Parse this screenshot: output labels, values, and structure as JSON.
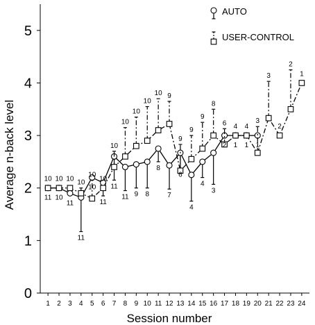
{
  "chart_data": {
    "type": "line",
    "xlabel": "Session number",
    "ylabel": "Average n-back level",
    "xlim": [
      0.3,
      24.7
    ],
    "ylim": [
      0,
      5.5
    ],
    "x_ticks": [
      1,
      2,
      3,
      4,
      5,
      6,
      7,
      8,
      9,
      10,
      11,
      12,
      13,
      14,
      15,
      16,
      17,
      18,
      19,
      20,
      21,
      22,
      23,
      24
    ],
    "y_ticks": [
      0,
      1,
      2,
      3,
      4,
      5
    ],
    "legend_position": "top-right",
    "series": [
      {
        "name": "AUTO",
        "line_style": "solid",
        "marker": "circle",
        "error_direction": "down",
        "points": [
          {
            "x": 1,
            "y": 2.0,
            "err": 0.0,
            "n": "11"
          },
          {
            "x": 2,
            "y": 2.0,
            "err": 0.0,
            "n": "10"
          },
          {
            "x": 3,
            "y": 1.9,
            "err": 0.0,
            "n": "11"
          },
          {
            "x": 4,
            "y": 1.82,
            "err": 0.65,
            "n": "11"
          },
          {
            "x": 5,
            "y": 2.2,
            "err": 0.0,
            "n": "10"
          },
          {
            "x": 6,
            "y": 2.1,
            "err": 0.25,
            "n": "11"
          },
          {
            "x": 7,
            "y": 2.6,
            "err": 0.45,
            "n": "11"
          },
          {
            "x": 8,
            "y": 2.4,
            "err": 0.45,
            "n": "11"
          },
          {
            "x": 9,
            "y": 2.45,
            "err": 0.45,
            "n": "9"
          },
          {
            "x": 10,
            "y": 2.5,
            "err": 0.5,
            "n": "8"
          },
          {
            "x": 11,
            "y": 2.75,
            "err": 0.25,
            "n": "8"
          },
          {
            "x": 12,
            "y": 2.43,
            "err": 0.45,
            "n": "7"
          },
          {
            "x": 13,
            "y": 2.67,
            "err": 0.3,
            "n": "6"
          },
          {
            "x": 14,
            "y": 2.25,
            "err": 0.5,
            "n": "4"
          },
          {
            "x": 15,
            "y": 2.5,
            "err": 0.3,
            "n": "4"
          },
          {
            "x": 16,
            "y": 2.67,
            "err": 0.6,
            "n": "3"
          },
          {
            "x": 17,
            "y": 3.0,
            "err": 0.0,
            "n": "2"
          },
          {
            "x": 18,
            "y": 3.0,
            "err": 0.0,
            "n": "1"
          },
          {
            "x": 19,
            "y": 3.0,
            "err": 0.0,
            "n": "1"
          },
          {
            "x": 20,
            "y": 3.0,
            "err": 0.0,
            "n": "1"
          }
        ]
      },
      {
        "name": "USER-CONTROL",
        "line_style": "dash-dot",
        "marker": "square",
        "error_direction": "up",
        "points": [
          {
            "x": 1,
            "y": 2.0,
            "err": 0.0,
            "n": "10"
          },
          {
            "x": 2,
            "y": 2.0,
            "err": 0.0,
            "n": "10"
          },
          {
            "x": 3,
            "y": 2.0,
            "err": 0.0,
            "n": "10"
          },
          {
            "x": 4,
            "y": 1.9,
            "err": 0.1,
            "n": "10"
          },
          {
            "x": 5,
            "y": 1.8,
            "err": 0.35,
            "n": "10"
          },
          {
            "x": 6,
            "y": 2.0,
            "err": 0.0,
            "n": "10"
          },
          {
            "x": 7,
            "y": 2.4,
            "err": 0.3,
            "n": "10"
          },
          {
            "x": 8,
            "y": 2.6,
            "err": 0.55,
            "n": "10"
          },
          {
            "x": 9,
            "y": 2.8,
            "err": 0.55,
            "n": "10"
          },
          {
            "x": 10,
            "y": 2.9,
            "err": 0.65,
            "n": "10"
          },
          {
            "x": 11,
            "y": 3.1,
            "err": 0.6,
            "n": "10"
          },
          {
            "x": 12,
            "y": 3.22,
            "err": 0.43,
            "n": "9"
          },
          {
            "x": 13,
            "y": 2.33,
            "err": 0.5,
            "n": "9"
          },
          {
            "x": 14,
            "y": 2.55,
            "err": 0.45,
            "n": "9"
          },
          {
            "x": 15,
            "y": 2.75,
            "err": 0.5,
            "n": "9"
          },
          {
            "x": 16,
            "y": 3.0,
            "err": 0.5,
            "n": "8"
          },
          {
            "x": 17,
            "y": 2.83,
            "err": 0.3,
            "n": "6"
          },
          {
            "x": 18,
            "y": 3.0,
            "err": 0.0,
            "n": "4"
          },
          {
            "x": 19,
            "y": 3.0,
            "err": 0.0,
            "n": "4"
          },
          {
            "x": 20,
            "y": 2.67,
            "err": 0.5,
            "n": "3"
          },
          {
            "x": 21,
            "y": 3.33,
            "err": 0.7,
            "n": "3"
          },
          {
            "x": 22,
            "y": 3.0,
            "err": 0.0,
            "n": "2"
          },
          {
            "x": 23,
            "y": 3.5,
            "err": 0.75,
            "n": "2"
          },
          {
            "x": 24,
            "y": 4.0,
            "err": 0.0,
            "n": "1"
          }
        ]
      }
    ]
  }
}
